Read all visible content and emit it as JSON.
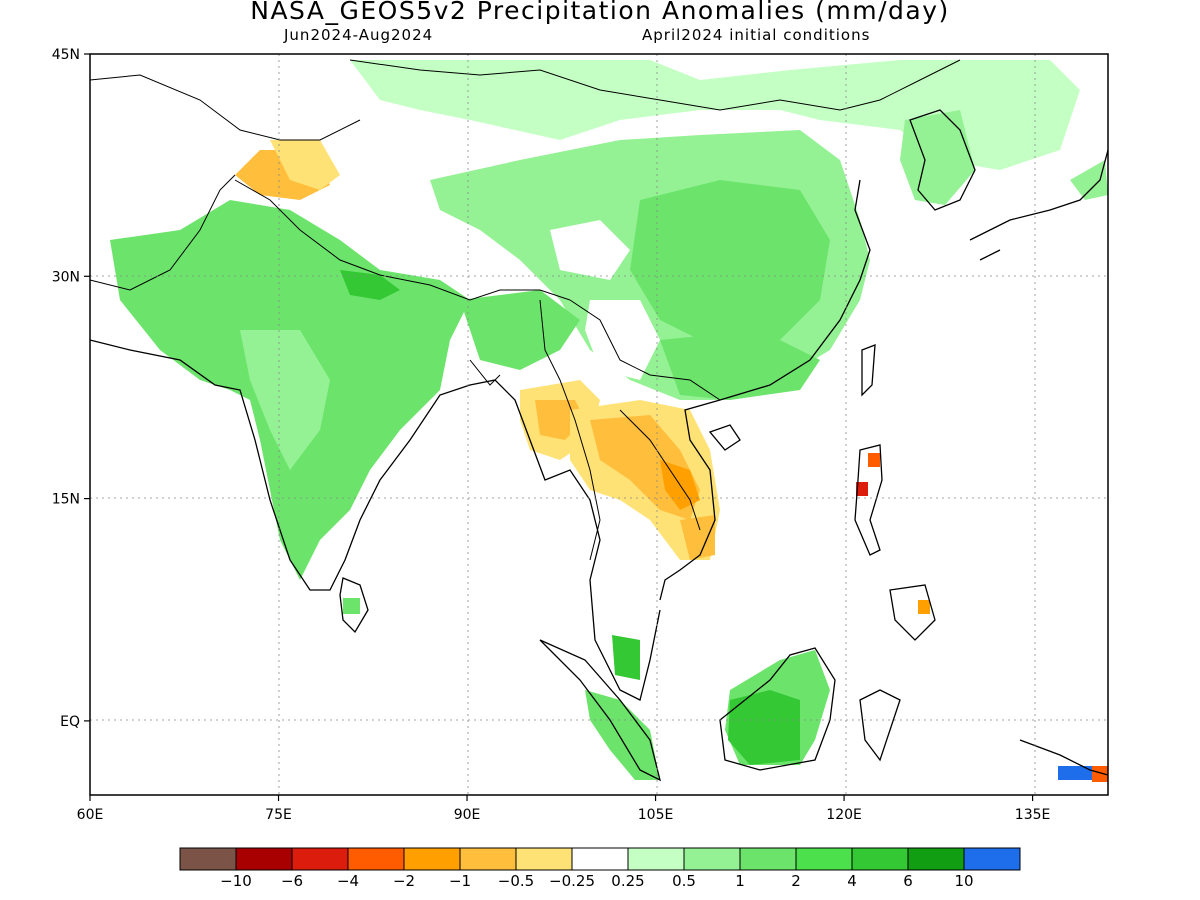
{
  "title": "NASA_GEOS5v2 Precipitation Anomalies (mm/day)",
  "subtitle_period": "Jun2024-Aug2024",
  "subtitle_init": "April2024 initial conditions",
  "lat_ticks": [
    {
      "label": "45N",
      "lat": 45
    },
    {
      "label": "30N",
      "lat": 30
    },
    {
      "label": "15N",
      "lat": 15
    },
    {
      "label": "EQ",
      "lat": 0
    }
  ],
  "lon_ticks": [
    {
      "label": "60E",
      "lon": 60
    },
    {
      "label": "75E",
      "lon": 75
    },
    {
      "label": "90E",
      "lon": 90
    },
    {
      "label": "105E",
      "lon": 105
    },
    {
      "label": "120E",
      "lon": 120
    },
    {
      "label": "135E",
      "lon": 135
    }
  ],
  "colorbar": {
    "colors": [
      "#7b5447",
      "#a80000",
      "#dc1c0c",
      "#ff5c00",
      "#ffa000",
      "#ffbe3c",
      "#ffe276",
      "#ffffff",
      "#c4ffc4",
      "#94f294",
      "#6ce46c",
      "#4ce04c",
      "#34c834",
      "#129e12",
      "#1e6eec"
    ],
    "labels": [
      "-10",
      "-6",
      "-4",
      "-2",
      "-1",
      "-0.5",
      "-0.25",
      "0.25",
      "0.5",
      "1",
      "2",
      "4",
      "6",
      "10"
    ]
  },
  "map_extent": {
    "lon_min": 60,
    "lon_max": 141,
    "lat_min": -5,
    "lat_max": 45
  },
  "anomaly_regions": [
    {
      "region": "India",
      "category": "0.5 to 1",
      "color": "#94f294"
    },
    {
      "region": "Nepal Himalaya",
      "category": "2 to 6",
      "color": "#34c834"
    },
    {
      "region": "Central China",
      "category": "0.5 to 1",
      "color": "#94f294"
    },
    {
      "region": "Southern China",
      "category": "1 to 2",
      "color": "#6ce46c"
    },
    {
      "region": "Mongolia",
      "category": "0.25 to 0.5",
      "color": "#c4ffc4"
    },
    {
      "region": "Borneo",
      "category": "2 to 6",
      "color": "#34c834"
    },
    {
      "region": "Sumatra",
      "category": "1 to 2",
      "color": "#6ce46c"
    },
    {
      "region": "Myanmar",
      "category": "-0.5 to -1",
      "color": "#ffbe3c"
    },
    {
      "region": "Thailand",
      "category": "-0.5 to -1",
      "color": "#ffbe3c"
    },
    {
      "region": "Laos",
      "category": "-1 to -2",
      "color": "#ffa000"
    },
    {
      "region": "Karakoram",
      "category": "-0.25 to -0.5",
      "color": "#ffe276"
    },
    {
      "region": "Luzon",
      "category": "-4 to -6",
      "color": "#dc1c0c"
    },
    {
      "region": "Korea",
      "category": "0.5 to 1",
      "color": "#94f294"
    }
  ]
}
